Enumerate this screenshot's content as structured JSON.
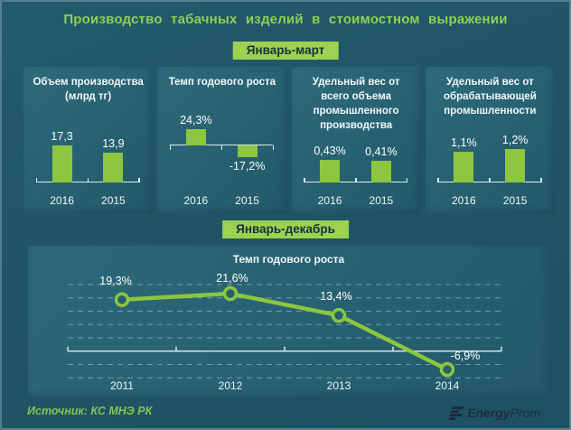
{
  "title": "Производство табачных изделий в стоимостном выражении",
  "sections": {
    "top": {
      "badge": "Январь-март"
    },
    "bottom": {
      "badge": "Январь-декабрь"
    }
  },
  "colors": {
    "background": "#205565",
    "panel": "#276171",
    "accent_green": "#8dc63f",
    "badge_green": "#9dd14f",
    "title_green": "#8fd053",
    "text_white": "#ffffff",
    "logo_navy": "#1b2b40"
  },
  "footer": {
    "source": "Источник: КС МНЭ РК",
    "logo_bold": "Energy",
    "logo_regular": "Prom",
    "logo_icon": "energyprom-logo-icon"
  },
  "chart_data": [
    {
      "type": "bar",
      "title": "Объем производства (млрд тг)",
      "categories": [
        "2016",
        "2015"
      ],
      "values": [
        17.3,
        13.9
      ],
      "labels": [
        "17,3",
        "13,9"
      ],
      "xlabel": "",
      "ylabel": "",
      "grid": false,
      "legend": "none"
    },
    {
      "type": "bar",
      "title": "Темп годового роста",
      "categories": [
        "2016",
        "2015"
      ],
      "values": [
        24.3,
        -17.2
      ],
      "labels": [
        "24,3%",
        "-17,2%"
      ],
      "xlabel": "",
      "ylabel": "",
      "grid": false,
      "legend": "none",
      "note": "baseline axis in middle, negative bar below axis"
    },
    {
      "type": "bar",
      "title": "Удельный вес от всего объема промышленного производства",
      "categories": [
        "2016",
        "2015"
      ],
      "values": [
        0.43,
        0.41
      ],
      "labels": [
        "0,43%",
        "0,41%"
      ],
      "xlabel": "",
      "ylabel": "",
      "grid": false,
      "legend": "none"
    },
    {
      "type": "bar",
      "title": "Удельный вес от обрабатывающей промышленности",
      "categories": [
        "2016",
        "2015"
      ],
      "values": [
        1.1,
        1.2
      ],
      "labels": [
        "1,1%",
        "1,2%"
      ],
      "xlabel": "",
      "ylabel": "",
      "grid": false,
      "legend": "none"
    },
    {
      "type": "line",
      "title": "Темп годового роста",
      "categories": [
        "2011",
        "2012",
        "2013",
        "2014"
      ],
      "values": [
        19.3,
        21.6,
        13.4,
        -6.9
      ],
      "labels": [
        "19,3%",
        "21,6%",
        "13,4%",
        "-6,9%"
      ],
      "xlabel": "",
      "ylabel": "",
      "ylim": [
        -12.5,
        27.5
      ],
      "grid": "horizontal dashed, every 5 units",
      "legend": "none"
    }
  ]
}
